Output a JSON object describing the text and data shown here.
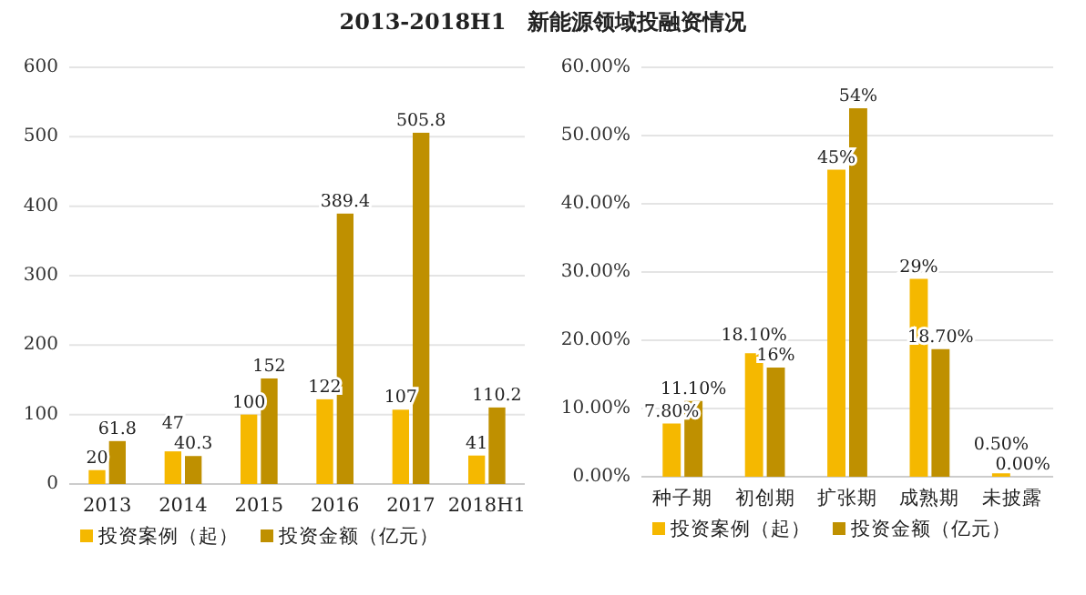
{
  "chart_data": [
    {
      "type": "bar",
      "title": "2013-2018H1　新能源领域投融资情况",
      "categories": [
        "2013",
        "2014",
        "2015",
        "2016",
        "2017",
        "2018H1"
      ],
      "series": [
        {
          "name": "投资案例（起）",
          "color": "#f5b800",
          "values": [
            20,
            47,
            100,
            122,
            107,
            41
          ]
        },
        {
          "name": "投资金额（亿元）",
          "color": "#bf9000",
          "values": [
            61.8,
            40.3,
            152,
            389.4,
            505.8,
            110.2
          ]
        }
      ],
      "ylim": [
        0,
        600
      ],
      "yticks": [
        0,
        100,
        200,
        300,
        400,
        500,
        600
      ],
      "grid": "y",
      "legend": "bottom",
      "data_labels": true
    },
    {
      "type": "bar",
      "categories": [
        "种子期",
        "初创期",
        "扩张期",
        "成熟期",
        "未披露"
      ],
      "series": [
        {
          "name": "投资案例（起）",
          "color": "#f5b800",
          "values": [
            7.8,
            18.1,
            45,
            29,
            0.5
          ],
          "value_labels": [
            "7.80%",
            "18.10%",
            "45%",
            "29%",
            "0.50%"
          ]
        },
        {
          "name": "投资金额（亿元）",
          "color": "#bf9000",
          "values": [
            11.1,
            16,
            54,
            18.7,
            0
          ],
          "value_labels": [
            "11.10%",
            "16%",
            "54%",
            "18.70%",
            "0.00%"
          ]
        }
      ],
      "ylim": [
        0,
        60
      ],
      "yticks": [
        {
          "value": 0,
          "label": "0.00%"
        },
        {
          "value": 10,
          "label": "10.00%"
        },
        {
          "value": 20,
          "label": "20.00%"
        },
        {
          "value": 30,
          "label": "30.00%"
        },
        {
          "value": 40,
          "label": "40.00%"
        },
        {
          "value": 50,
          "label": "50.00%"
        },
        {
          "value": 60,
          "label": "60.00%"
        }
      ],
      "grid": "y",
      "legend": "bottom"
    }
  ]
}
